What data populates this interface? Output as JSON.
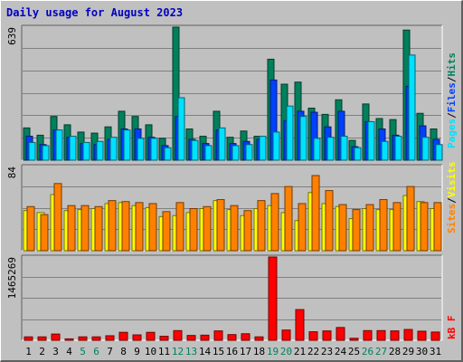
{
  "title": "Daily usage for August 2023",
  "colors": {
    "hits": "#00805c",
    "files": "#0040ff",
    "pages": "#00e0ff",
    "visits": "#ffff00",
    "sites": "#ff8000",
    "kbytes": "#ff0000",
    "weekend_day_label": "#00805c"
  },
  "legend_right": {
    "panel1": [
      "Pages",
      "Files",
      "Hits"
    ],
    "panel2": [
      "Sites",
      "Visits"
    ],
    "panel3": [
      "kB F"
    ]
  },
  "chart_data": [
    {
      "type": "bar",
      "title": "Daily usage for August 2023",
      "categories": [
        "1",
        "2",
        "3",
        "4",
        "5",
        "6",
        "7",
        "8",
        "9",
        "10",
        "11",
        "12",
        "13",
        "14",
        "15",
        "16",
        "17",
        "18",
        "19",
        "20",
        "21",
        "22",
        "23",
        "24",
        "25",
        "26",
        "27",
        "28",
        "29",
        "30",
        "31"
      ],
      "weekend_days": [
        "5",
        "6",
        "12",
        "13",
        "19",
        "20",
        "26",
        "27"
      ],
      "ylim": [
        0,
        639
      ],
      "ytick_label": "639",
      "series": [
        {
          "name": "Hits",
          "values": [
            155,
            120,
            210,
            170,
            135,
            130,
            160,
            235,
            210,
            170,
            105,
            639,
            150,
            115,
            235,
            110,
            140,
            115,
            485,
            365,
            375,
            250,
            220,
            290,
            95,
            270,
            200,
            195,
            625,
            225,
            150
          ]
        },
        {
          "name": "Files",
          "values": [
            115,
            75,
            145,
            110,
            80,
            75,
            100,
            150,
            150,
            110,
            70,
            210,
            100,
            80,
            145,
            80,
            90,
            100,
            385,
            190,
            235,
            230,
            160,
            235,
            65,
            185,
            150,
            120,
            355,
            165,
            100
          ]
        },
        {
          "name": "Pages",
          "values": [
            85,
            70,
            145,
            115,
            85,
            90,
            110,
            145,
            105,
            105,
            60,
            300,
            95,
            70,
            155,
            70,
            75,
            115,
            135,
            260,
            210,
            105,
            110,
            115,
            60,
            185,
            90,
            115,
            505,
            110,
            75
          ]
        }
      ]
    },
    {
      "type": "bar",
      "categories": [
        "1",
        "2",
        "3",
        "4",
        "5",
        "6",
        "7",
        "8",
        "9",
        "10",
        "11",
        "12",
        "13",
        "14",
        "15",
        "16",
        "17",
        "18",
        "19",
        "20",
        "21",
        "22",
        "23",
        "24",
        "25",
        "26",
        "27",
        "28",
        "29",
        "30",
        "31"
      ],
      "ylim": [
        0,
        84
      ],
      "ytick_label": "84",
      "series": [
        {
          "name": "Visits",
          "values": [
            40,
            38,
            56,
            40,
            41,
            42,
            47,
            48,
            45,
            43,
            34,
            35,
            38,
            42,
            50,
            41,
            35,
            42,
            45,
            38,
            30,
            58,
            47,
            44,
            32,
            42,
            41,
            41,
            55,
            49,
            42
          ]
        },
        {
          "name": "Sites",
          "values": [
            44,
            36,
            67,
            45,
            45,
            44,
            50,
            49,
            48,
            47,
            39,
            48,
            42,
            44,
            51,
            45,
            40,
            50,
            57,
            64,
            47,
            75,
            60,
            46,
            41,
            46,
            51,
            48,
            64,
            48,
            48
          ]
        }
      ]
    },
    {
      "type": "bar",
      "categories": [
        "1",
        "2",
        "3",
        "4",
        "5",
        "6",
        "7",
        "8",
        "9",
        "10",
        "11",
        "12",
        "13",
        "14",
        "15",
        "16",
        "17",
        "18",
        "19",
        "20",
        "21",
        "22",
        "23",
        "24",
        "25",
        "26",
        "27",
        "28",
        "29",
        "30",
        "31"
      ],
      "ylim": [
        0,
        1465269
      ],
      "ytick_label": "1465269",
      "series": [
        {
          "name": "kB F",
          "values": [
            60000,
            60000,
            110000,
            25000,
            60000,
            60000,
            80000,
            140000,
            95000,
            140000,
            70000,
            170000,
            85000,
            90000,
            165000,
            100000,
            115000,
            60000,
            1465269,
            180000,
            540000,
            150000,
            165000,
            225000,
            35000,
            170000,
            170000,
            165000,
            190000,
            160000,
            145000
          ]
        }
      ]
    }
  ]
}
